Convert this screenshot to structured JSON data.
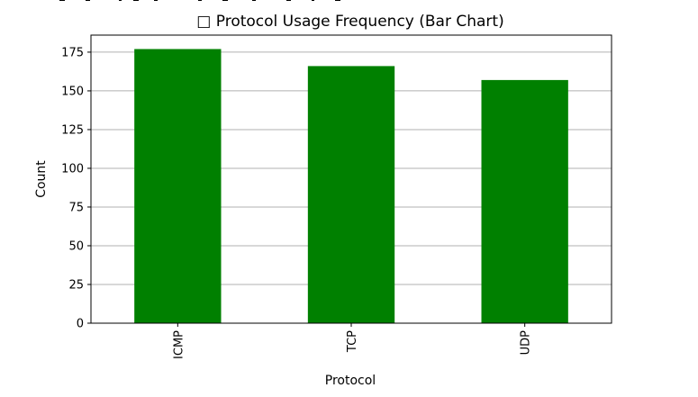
{
  "chart_data": {
    "type": "bar",
    "title": "□ Protocol Usage Frequency (Bar Chart)",
    "xlabel": "Protocol",
    "ylabel": "Count",
    "categories": [
      "ICMP",
      "TCP",
      "UDP"
    ],
    "values": [
      177,
      166,
      157
    ],
    "ylim": [
      0,
      186
    ],
    "yticks": [
      0,
      25,
      50,
      75,
      100,
      125,
      150,
      175
    ],
    "bar_color": "#008000",
    "grid": "horizontal",
    "legend": "none"
  }
}
